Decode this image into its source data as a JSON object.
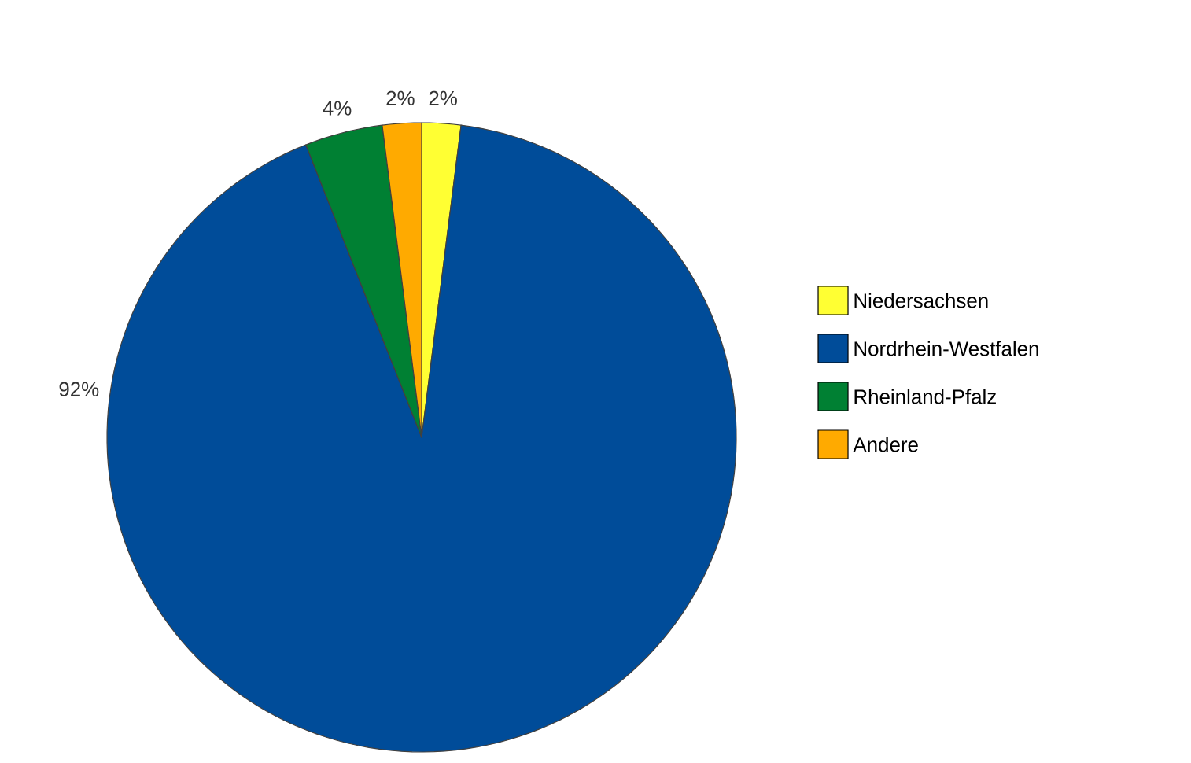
{
  "chart_data": {
    "type": "pie",
    "categories": [
      "Niedersachsen",
      "Nordrhein-Westfalen",
      "Rheinland-Pfalz",
      "Andere"
    ],
    "values": [
      2,
      92,
      4,
      2
    ],
    "value_labels": [
      "2%",
      "92%",
      "4%",
      "2%"
    ],
    "colors": [
      "#ffff33",
      "#004c99",
      "#008033",
      "#ffaa00"
    ],
    "legend": "right"
  }
}
